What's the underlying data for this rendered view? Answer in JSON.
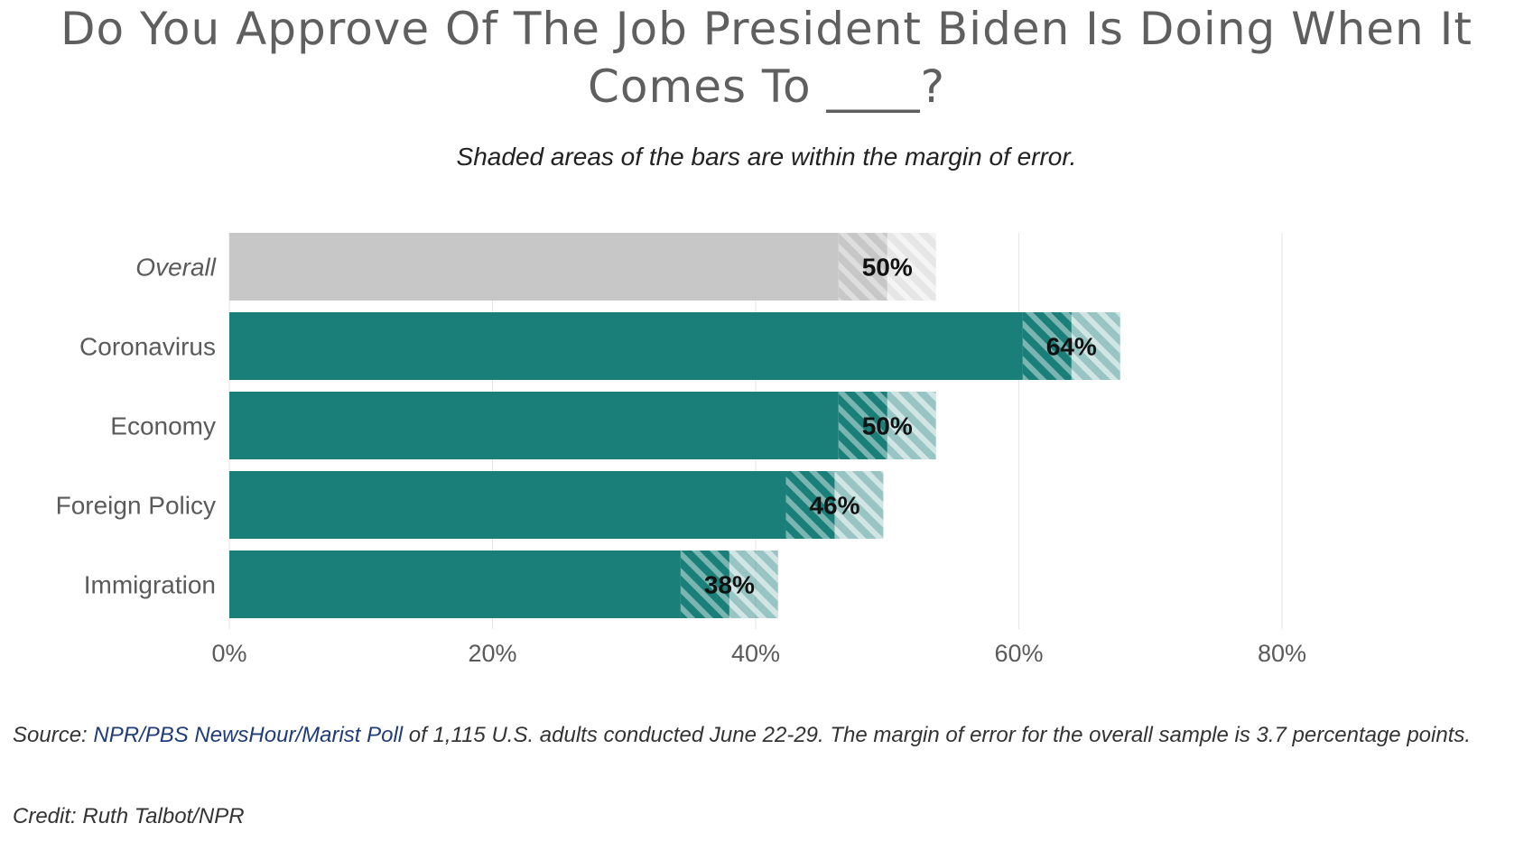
{
  "title": "Do You Approve Of The Job President Biden Is Doing When It Comes To ____?",
  "subtitle": "Shaded areas of the bars are within the margin of error.",
  "footer": {
    "source_prefix": "Source: ",
    "source_link": "NPR/PBS NewsHour/Marist Poll",
    "source_rest": " of 1,115 U.S. adults conducted June 22-29. The margin of error for the overall sample is 3.7 percentage points.",
    "credit": "Credit: Ruth Talbot/NPR"
  },
  "colors": {
    "overall": "#c7c7c7",
    "topic": "#1a7f79",
    "label_text": "#5a5a5a",
    "value_text": "#111111",
    "grid": "#e6e6e6"
  },
  "chart_data": {
    "type": "bar",
    "orientation": "horizontal",
    "categories": [
      "Overall",
      "Coronavirus",
      "Economy",
      "Foreign Policy",
      "Immigration"
    ],
    "values": [
      50,
      64,
      50,
      46,
      38
    ],
    "value_labels": [
      "50%",
      "64%",
      "50%",
      "46%",
      "38%"
    ],
    "margin_of_error": 3.7,
    "xlim": [
      0,
      80
    ],
    "x_ticks": [
      0,
      20,
      40,
      60,
      80
    ],
    "x_tick_labels": [
      "0%",
      "20%",
      "40%",
      "60%",
      "80%"
    ],
    "grid": true,
    "italic_categories": [
      "Overall"
    ]
  }
}
